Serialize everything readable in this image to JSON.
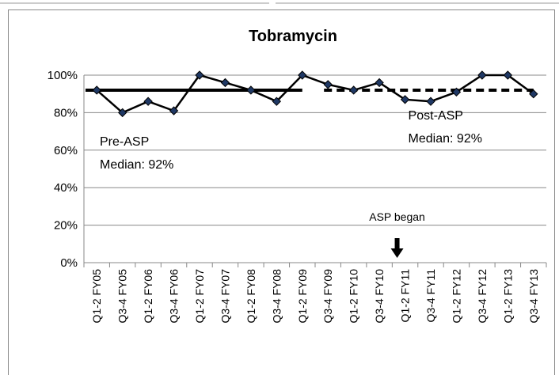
{
  "chart_data": {
    "type": "line",
    "title": "Tobramycin",
    "categories": [
      "Q1-2 FY05",
      "Q3-4 FY05",
      "Q1-2 FY06",
      "Q3-4 FY06",
      "Q1-2 FY07",
      "Q3-4 FY07",
      "Q1-2 FY08",
      "Q3-4 FY08",
      "Q1-2 FY09",
      "Q3-4 FY09",
      "Q1-2 FY10",
      "Q3-4 FY10",
      "Q1-2 FY11",
      "Q3-4 FY11",
      "Q1-2 FY12",
      "Q3-4 FY12",
      "Q1-2 FY13",
      "Q3-4 FY13"
    ],
    "series": [
      {
        "color": "#000000",
        "marker_color": "#1f3864",
        "values": [
          92,
          80,
          86,
          81,
          100,
          96,
          92,
          86,
          100,
          95,
          92,
          96,
          87,
          86,
          91,
          100,
          100,
          90
        ]
      }
    ],
    "reference_lines": [
      {
        "value": 92,
        "style": "solid",
        "from": "Q1-2 FY05",
        "to": "Q1-2 FY09",
        "label": [
          "Pre-ASP",
          "Median: 92%"
        ]
      },
      {
        "value": 92,
        "style": "dashed",
        "from": "Q3-4 FY09",
        "to": "Q3-4 FY13",
        "label": [
          "Post-ASP",
          "Median: 92%"
        ]
      }
    ],
    "event": {
      "text": "ASP began",
      "at": "Q1-2 FY11"
    },
    "ylim": [
      0,
      100
    ],
    "yticks": [
      {
        "value": 0,
        "label": "0%"
      },
      {
        "value": 20,
        "label": "20%"
      },
      {
        "value": 40,
        "label": "40%"
      },
      {
        "value": 60,
        "label": "60%"
      },
      {
        "value": 80,
        "label": "80%"
      },
      {
        "value": 100,
        "label": "100%"
      }
    ],
    "grid": true
  }
}
